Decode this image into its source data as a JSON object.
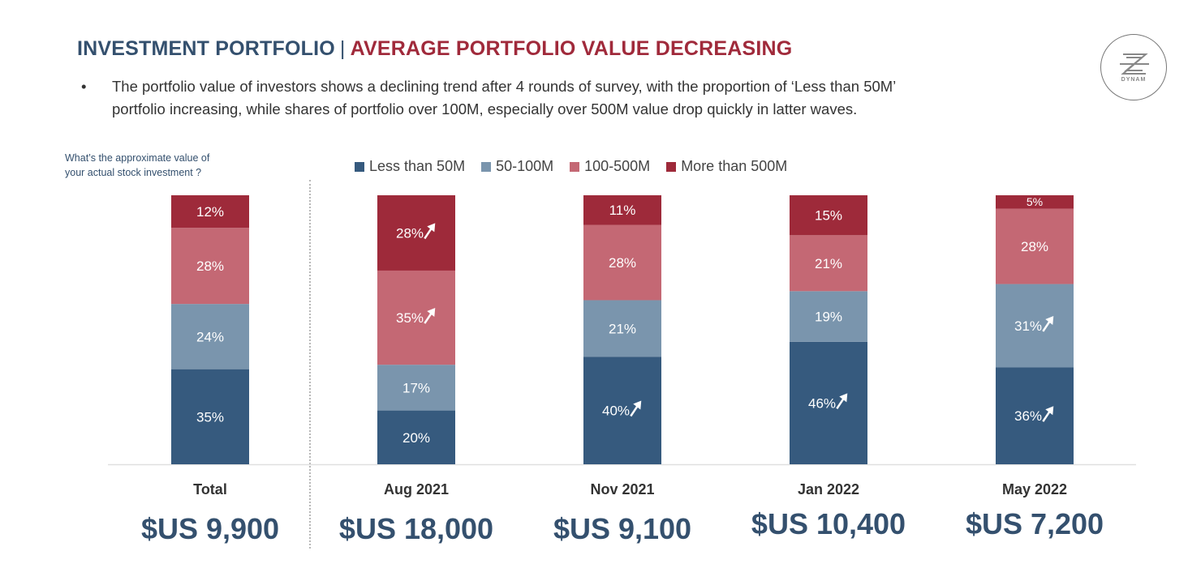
{
  "header": {
    "title_part1": "INVESTMENT PORTFOLIO",
    "separator": "|",
    "title_part2": "AVERAGE PORTFOLIO VALUE DECREASING"
  },
  "bullet": {
    "marker": "•",
    "line1": "The portfolio value of investors shows a declining trend after 4 rounds of survey, with the proportion of ‘Less than 50M’",
    "line2": "portfolio increasing, while shares of portfolio over 100M, especially over 500M value drop quickly in latter waves."
  },
  "logo": {
    "text": "DYNAM",
    "name": "dynam-logo"
  },
  "question": {
    "line1": "What’s the approximate value of",
    "line2": "your actual stock investment ?"
  },
  "colors": {
    "less50": "#365a7e",
    "m50_100": "#7a95ad",
    "m100_500": "#c46874",
    "more500": "#9e2a3a",
    "title_blue": "#34506e",
    "title_red": "#a02a3b"
  },
  "chart_data": {
    "type": "bar",
    "stacked": true,
    "normalized": true,
    "title": "",
    "xlabel": "",
    "ylabel": "",
    "ylim": [
      0,
      100
    ],
    "grid": false,
    "legend_position": "top",
    "categories": [
      "Total",
      "Aug 2021",
      "Nov 2021",
      "Jan 2022",
      "May 2022"
    ],
    "category_values": [
      "$US 9,900",
      "$US 18,000",
      "$US 9,100",
      "$US 10,400",
      "$US 7,200"
    ],
    "series": [
      {
        "name": "Less than 50M",
        "values": [
          35,
          20,
          40,
          46,
          36
        ],
        "labels": [
          "35%",
          "20%",
          "40%",
          "46%",
          "36%"
        ],
        "arrow_up": [
          false,
          false,
          true,
          true,
          true
        ]
      },
      {
        "name": "50-100M",
        "values": [
          24,
          17,
          21,
          19,
          31
        ],
        "labels": [
          "24%",
          "17%",
          "21%",
          "19%",
          "31%"
        ],
        "arrow_up": [
          false,
          false,
          false,
          false,
          true
        ]
      },
      {
        "name": "100-500M",
        "values": [
          28,
          35,
          28,
          21,
          28
        ],
        "labels": [
          "28%",
          "35%",
          "28%",
          "21%",
          "28%"
        ],
        "arrow_up": [
          false,
          true,
          false,
          false,
          false
        ]
      },
      {
        "name": "More than 500M",
        "values": [
          12,
          28,
          11,
          15,
          5
        ],
        "labels": [
          "12%",
          "28%",
          "11%",
          "15%",
          "5%"
        ],
        "arrow_up": [
          false,
          true,
          false,
          false,
          false
        ]
      }
    ]
  }
}
